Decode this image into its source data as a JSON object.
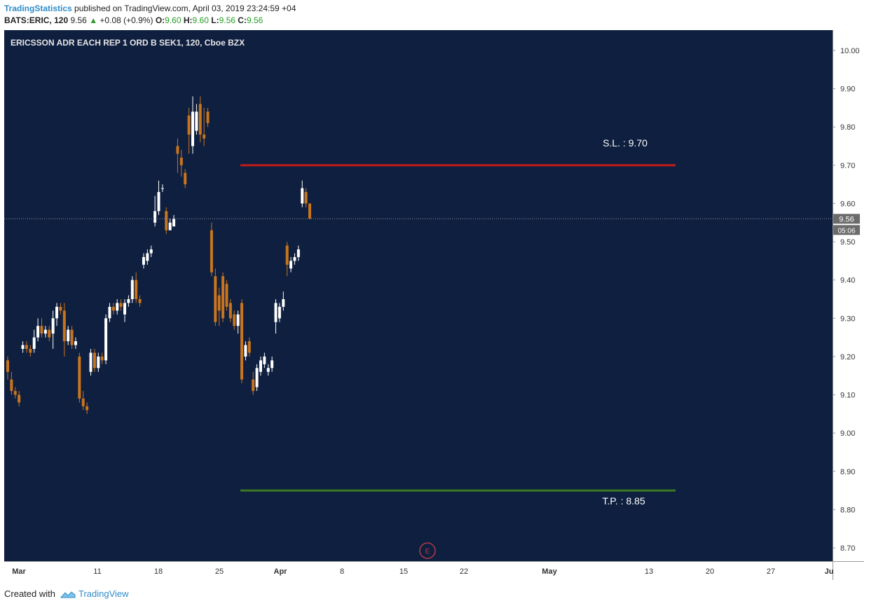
{
  "header": {
    "author": "TradingStatistics",
    "published": "published on TradingView.com, April 03, 2019 23:24:59 +04",
    "symbol": "BATS:ERIC, 120",
    "price": "9.56",
    "change_arrow": "▲",
    "change": "+0.08 (+0.9%)",
    "o_label": "O:",
    "o_value": "9.60",
    "h_label": "H:",
    "h_value": "9.60",
    "l_label": "L:",
    "l_value": "9.56",
    "c_label": "C:",
    "c_value": "9.56"
  },
  "footer": {
    "created_with": "Created with",
    "brand": "TradingView"
  },
  "colors": {
    "background": "#0f1f3f",
    "up_candle": "#ffffff",
    "down_candle": "#c8751e",
    "stop_loss": "#c41a1a",
    "take_profit": "#3a7a22",
    "axis_bg": "#ffffff",
    "label_bg": "#6b6b6b"
  },
  "chart_data": {
    "type": "candlestick",
    "title": "ERICSSON ADR EACH REP 1 ORD B SEK1, 120, Cboe BZX",
    "ylim": [
      8.66,
      10.04
    ],
    "y_ticks": [
      "10.00",
      "9.90",
      "9.80",
      "9.70",
      "9.60",
      "9.50",
      "9.40",
      "9.30",
      "9.20",
      "9.10",
      "9.00",
      "8.90",
      "8.80",
      "8.70"
    ],
    "x_ticks": [
      "Mar",
      "11",
      "18",
      "25",
      "Apr",
      "8",
      "15",
      "22",
      "May",
      "13",
      "20",
      "27",
      "Ju"
    ],
    "current_price": "9.56",
    "countdown": "05:06",
    "stop_loss": {
      "label": "S.L. : 9.70",
      "value": 9.7
    },
    "take_profit": {
      "label": "T.P. : 8.85",
      "value": 8.85
    },
    "earnings_marker": "E",
    "grid": false,
    "candles": [
      [
        9.19,
        9.16,
        9.2,
        9.14
      ],
      [
        9.14,
        9.11,
        9.16,
        9.1
      ],
      [
        9.11,
        9.1,
        9.12,
        9.09
      ],
      [
        9.1,
        9.08,
        9.11,
        9.07
      ],
      [
        9.22,
        9.23,
        9.24,
        9.21
      ],
      [
        9.23,
        9.22,
        9.24,
        9.21
      ],
      [
        9.22,
        9.21,
        9.23,
        9.2
      ],
      [
        9.22,
        9.25,
        9.27,
        9.21
      ],
      [
        9.25,
        9.28,
        9.3,
        9.24
      ],
      [
        9.28,
        9.26,
        9.3,
        9.25
      ],
      [
        9.26,
        9.27,
        9.28,
        9.25
      ],
      [
        9.27,
        9.25,
        9.28,
        9.24
      ],
      [
        9.26,
        9.3,
        9.32,
        9.22
      ],
      [
        9.3,
        9.33,
        9.34,
        9.28
      ],
      [
        9.33,
        9.32,
        9.34,
        9.31
      ],
      [
        9.32,
        9.24,
        9.34,
        9.2
      ],
      [
        9.24,
        9.27,
        9.28,
        9.23
      ],
      [
        9.27,
        9.23,
        9.28,
        9.22
      ],
      [
        9.23,
        9.24,
        9.25,
        9.22
      ],
      [
        9.2,
        9.09,
        9.21,
        9.08
      ],
      [
        9.09,
        9.07,
        9.11,
        9.06
      ],
      [
        9.07,
        9.06,
        9.08,
        9.05
      ],
      [
        9.16,
        9.21,
        9.22,
        9.15
      ],
      [
        9.21,
        9.17,
        9.22,
        9.16
      ],
      [
        9.17,
        9.2,
        9.21,
        9.16
      ],
      [
        9.2,
        9.19,
        9.21,
        9.18
      ],
      [
        9.19,
        9.3,
        9.31,
        9.18
      ],
      [
        9.3,
        9.33,
        9.34,
        9.29
      ],
      [
        9.33,
        9.32,
        9.34,
        9.31
      ],
      [
        9.32,
        9.34,
        9.35,
        9.31
      ],
      [
        9.34,
        9.33,
        9.35,
        9.32
      ],
      [
        9.31,
        9.34,
        9.35,
        9.29
      ],
      [
        9.34,
        9.35,
        9.36,
        9.33
      ],
      [
        9.35,
        9.4,
        9.41,
        9.34
      ],
      [
        9.4,
        9.35,
        9.42,
        9.34
      ],
      [
        9.35,
        9.34,
        9.36,
        9.33
      ],
      [
        9.44,
        9.46,
        9.47,
        9.43
      ],
      [
        9.45,
        9.47,
        9.48,
        9.44
      ],
      [
        9.47,
        9.48,
        9.49,
        9.46
      ],
      [
        9.55,
        9.58,
        9.62,
        9.54
      ],
      [
        9.58,
        9.63,
        9.66,
        9.57
      ],
      [
        9.64,
        9.64,
        9.65,
        9.63
      ],
      [
        9.58,
        9.53,
        9.59,
        9.52
      ],
      [
        9.53,
        9.55,
        9.56,
        9.53
      ],
      [
        9.54,
        9.56,
        9.57,
        9.54
      ],
      [
        9.75,
        9.73,
        9.77,
        9.68
      ],
      [
        9.72,
        9.7,
        9.74,
        9.67
      ],
      [
        9.68,
        9.65,
        9.69,
        9.64
      ],
      [
        9.83,
        9.78,
        9.85,
        9.73
      ],
      [
        9.75,
        9.84,
        9.88,
        9.73
      ],
      [
        9.79,
        9.84,
        9.86,
        9.78
      ],
      [
        9.86,
        9.78,
        9.88,
        9.76
      ],
      [
        9.78,
        9.77,
        9.85,
        9.75
      ],
      [
        9.84,
        9.81,
        9.85,
        9.8
      ],
      [
        9.53,
        9.42,
        9.55,
        9.41
      ],
      [
        9.41,
        9.29,
        9.43,
        9.28
      ],
      [
        9.36,
        9.32,
        9.38,
        9.28
      ],
      [
        9.41,
        9.3,
        9.42,
        9.29
      ],
      [
        9.39,
        9.33,
        9.4,
        9.32
      ],
      [
        9.34,
        9.3,
        9.35,
        9.29
      ],
      [
        9.31,
        9.28,
        9.32,
        9.27
      ],
      [
        9.28,
        9.31,
        9.32,
        9.26
      ],
      [
        9.34,
        9.14,
        9.35,
        9.13
      ],
      [
        9.2,
        9.23,
        9.24,
        9.19
      ],
      [
        9.24,
        9.21,
        9.25,
        9.2
      ],
      [
        9.14,
        9.11,
        9.16,
        9.1
      ],
      [
        9.12,
        9.17,
        9.18,
        9.11
      ],
      [
        9.16,
        9.19,
        9.2,
        9.15
      ],
      [
        9.18,
        9.2,
        9.21,
        9.17
      ],
      [
        9.16,
        9.17,
        9.18,
        9.15
      ],
      [
        9.17,
        9.19,
        9.2,
        9.16
      ],
      [
        9.29,
        9.34,
        9.35,
        9.26
      ],
      [
        9.3,
        9.33,
        9.34,
        9.29
      ],
      [
        9.33,
        9.35,
        9.37,
        9.32
      ],
      [
        9.49,
        9.44,
        9.5,
        9.41
      ],
      [
        9.43,
        9.45,
        9.46,
        9.42
      ],
      [
        9.45,
        9.46,
        9.47,
        9.44
      ],
      [
        9.46,
        9.48,
        9.49,
        9.45
      ],
      [
        9.6,
        9.64,
        9.66,
        9.59
      ],
      [
        9.63,
        9.6,
        9.64,
        9.59
      ],
      [
        9.6,
        9.56,
        9.6,
        9.56
      ]
    ]
  }
}
